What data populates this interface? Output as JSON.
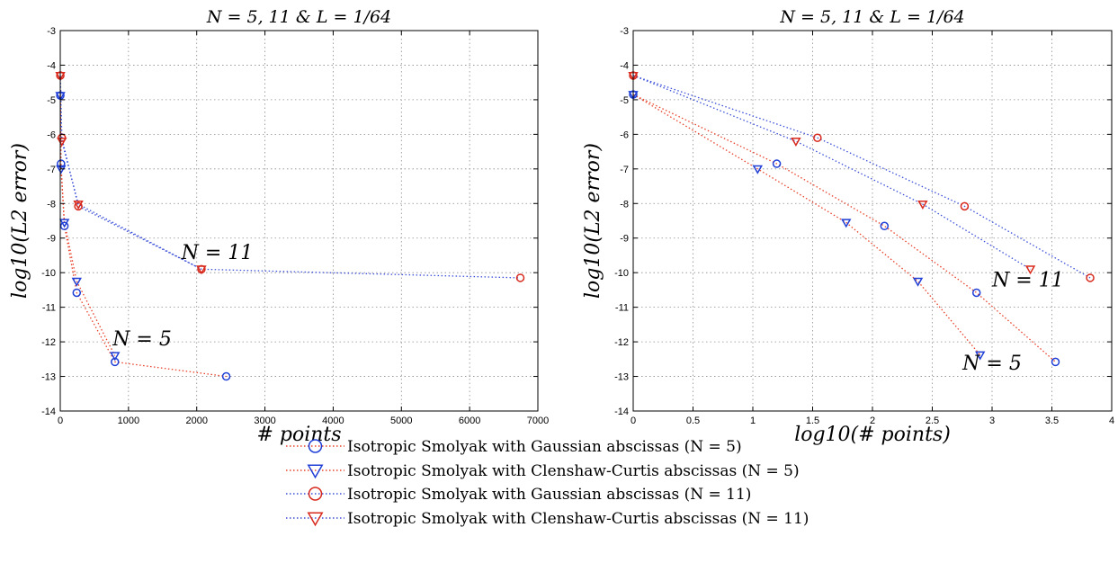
{
  "chart_data": [
    {
      "type": "scatter",
      "title": "N = 5, 11 & L = 1/64",
      "xlabel": "# points",
      "ylabel": "log10(L2 error)",
      "xlim": [
        0,
        7000
      ],
      "ylim": [
        -14,
        -3
      ],
      "xticks": [
        "0",
        "1000",
        "2000",
        "3000",
        "4000",
        "5000",
        "6000",
        "7000"
      ],
      "yticks": [
        "-14",
        "-13",
        "-12",
        "-11",
        "-10",
        "-9",
        "-8",
        "-7",
        "-6",
        "-5",
        "-4",
        "-3"
      ],
      "grid": true,
      "annotations": [
        {
          "text": "N = 11",
          "x": 2300,
          "y": -9.6
        },
        {
          "text": "N = 5",
          "x": 1200,
          "y": -12.1
        }
      ],
      "series": [
        {
          "name": "Isotropic Smolyak with Gaussian abscissas (N = 5)",
          "marker": "circle",
          "color": "#1f3fd6",
          "line_color": "#e8402a",
          "x": [
            1,
            11,
            61,
            241,
            801,
            2433
          ],
          "y": [
            -4.88,
            -6.85,
            -8.65,
            -10.58,
            -12.58,
            -13.0
          ]
        },
        {
          "name": "Isotropic Smolyak with Clenshaw-Curtis abscissas (N = 5)",
          "marker": "triangle",
          "color": "#1f3fd6",
          "line_color": "#e8402a",
          "x": [
            1,
            11,
            61,
            241,
            801
          ],
          "y": [
            -4.88,
            -7.0,
            -8.55,
            -10.25,
            -12.4
          ]
        },
        {
          "name": "Isotropic Smolyak with Gaussian abscissas (N = 11)",
          "marker": "circle",
          "color": "#d8291c",
          "line_color": "#3b4fd8",
          "x": [
            1,
            23,
            265,
            2069,
            6743
          ],
          "y": [
            -4.3,
            -6.1,
            -8.08,
            -9.9,
            -10.15
          ]
        },
        {
          "name": "Isotropic Smolyak with Clenshaw-Curtis abscissas (N = 11)",
          "marker": "triangle",
          "color": "#d8291c",
          "line_color": "#3b4fd8",
          "x": [
            1,
            23,
            265,
            2069
          ],
          "y": [
            -4.3,
            -6.2,
            -8.02,
            -9.9
          ]
        }
      ]
    },
    {
      "type": "scatter",
      "title": "N = 5, 11 & L = 1/64",
      "xlabel": "log10(# points)",
      "ylabel": "log10(L2 error)",
      "xlim": [
        0,
        4
      ],
      "ylim": [
        -14,
        -3
      ],
      "xticks": [
        "0",
        "0.5",
        "1",
        "1.5",
        "2",
        "2.5",
        "3",
        "3.5",
        "4"
      ],
      "yticks": [
        "-14",
        "-13",
        "-12",
        "-11",
        "-10",
        "-9",
        "-8",
        "-7",
        "-6",
        "-5",
        "-4",
        "-3"
      ],
      "grid": true,
      "annotations": [
        {
          "text": "N = 11",
          "x": 3.3,
          "y": -10.4
        },
        {
          "text": "N = 5",
          "x": 3.0,
          "y": -12.8
        }
      ],
      "series": [
        {
          "name": "Isotropic Smolyak with Gaussian abscissas (N = 5)",
          "marker": "circle",
          "color": "#1f3fd6",
          "line_color": "#e8402a",
          "x": [
            0,
            1.2,
            2.1,
            2.87,
            3.53
          ],
          "y": [
            -4.85,
            -6.85,
            -8.65,
            -10.58,
            -12.58
          ]
        },
        {
          "name": "Isotropic Smolyak with Clenshaw-Curtis abscissas (N = 5)",
          "marker": "triangle",
          "color": "#1f3fd6",
          "line_color": "#e8402a",
          "x": [
            0,
            1.04,
            1.78,
            2.38,
            2.9
          ],
          "y": [
            -4.85,
            -7.0,
            -8.55,
            -10.25,
            -12.38
          ]
        },
        {
          "name": "Isotropic Smolyak with Gaussian abscissas (N = 11)",
          "marker": "circle",
          "color": "#d8291c",
          "line_color": "#3b4fd8",
          "x": [
            0,
            1.54,
            2.77,
            3.82
          ],
          "y": [
            -4.3,
            -6.1,
            -8.08,
            -10.15
          ]
        },
        {
          "name": "Isotropic Smolyak with Clenshaw-Curtis abscissas (N = 11)",
          "marker": "triangle",
          "color": "#d8291c",
          "line_color": "#3b4fd8",
          "x": [
            0,
            1.36,
            2.42,
            3.32
          ],
          "y": [
            -4.3,
            -6.2,
            -8.02,
            -9.9
          ]
        }
      ]
    }
  ],
  "legend": {
    "placement": "bottom-center",
    "entries": [
      "Isotropic Smolyak with Gaussian abscissas (N = 5)",
      "Isotropic Smolyak with Clenshaw-Curtis abscissas (N = 5)",
      "Isotropic Smolyak with Gaussian abscissas (N = 11)",
      "Isotropic Smolyak with Clenshaw-Curtis abscissas (N = 11)"
    ]
  }
}
